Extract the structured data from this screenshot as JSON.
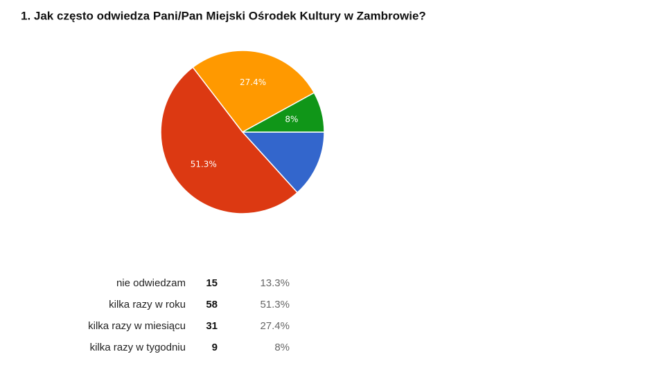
{
  "chart_data": {
    "type": "pie",
    "title": "1. Jak często odwiedza Pani/Pan Miejski Ośrodek Kultury w Zambrowie?",
    "categories": [
      "nie odwiedzam",
      "kilka razy w roku",
      "kilka razy w miesiącu",
      "kilka razy w tygodniu"
    ],
    "counts": [
      15,
      58,
      31,
      9
    ],
    "values": [
      13.3,
      51.3,
      27.4,
      8
    ],
    "value_labels": [
      "13.3%",
      "51.3%",
      "27.4%",
      "8%"
    ],
    "pie_labels": [
      null,
      "51.3%",
      "27.4%",
      "8%"
    ],
    "colors": [
      "#3366cc",
      "#dc3912",
      "#ff9900",
      "#109618"
    ]
  }
}
